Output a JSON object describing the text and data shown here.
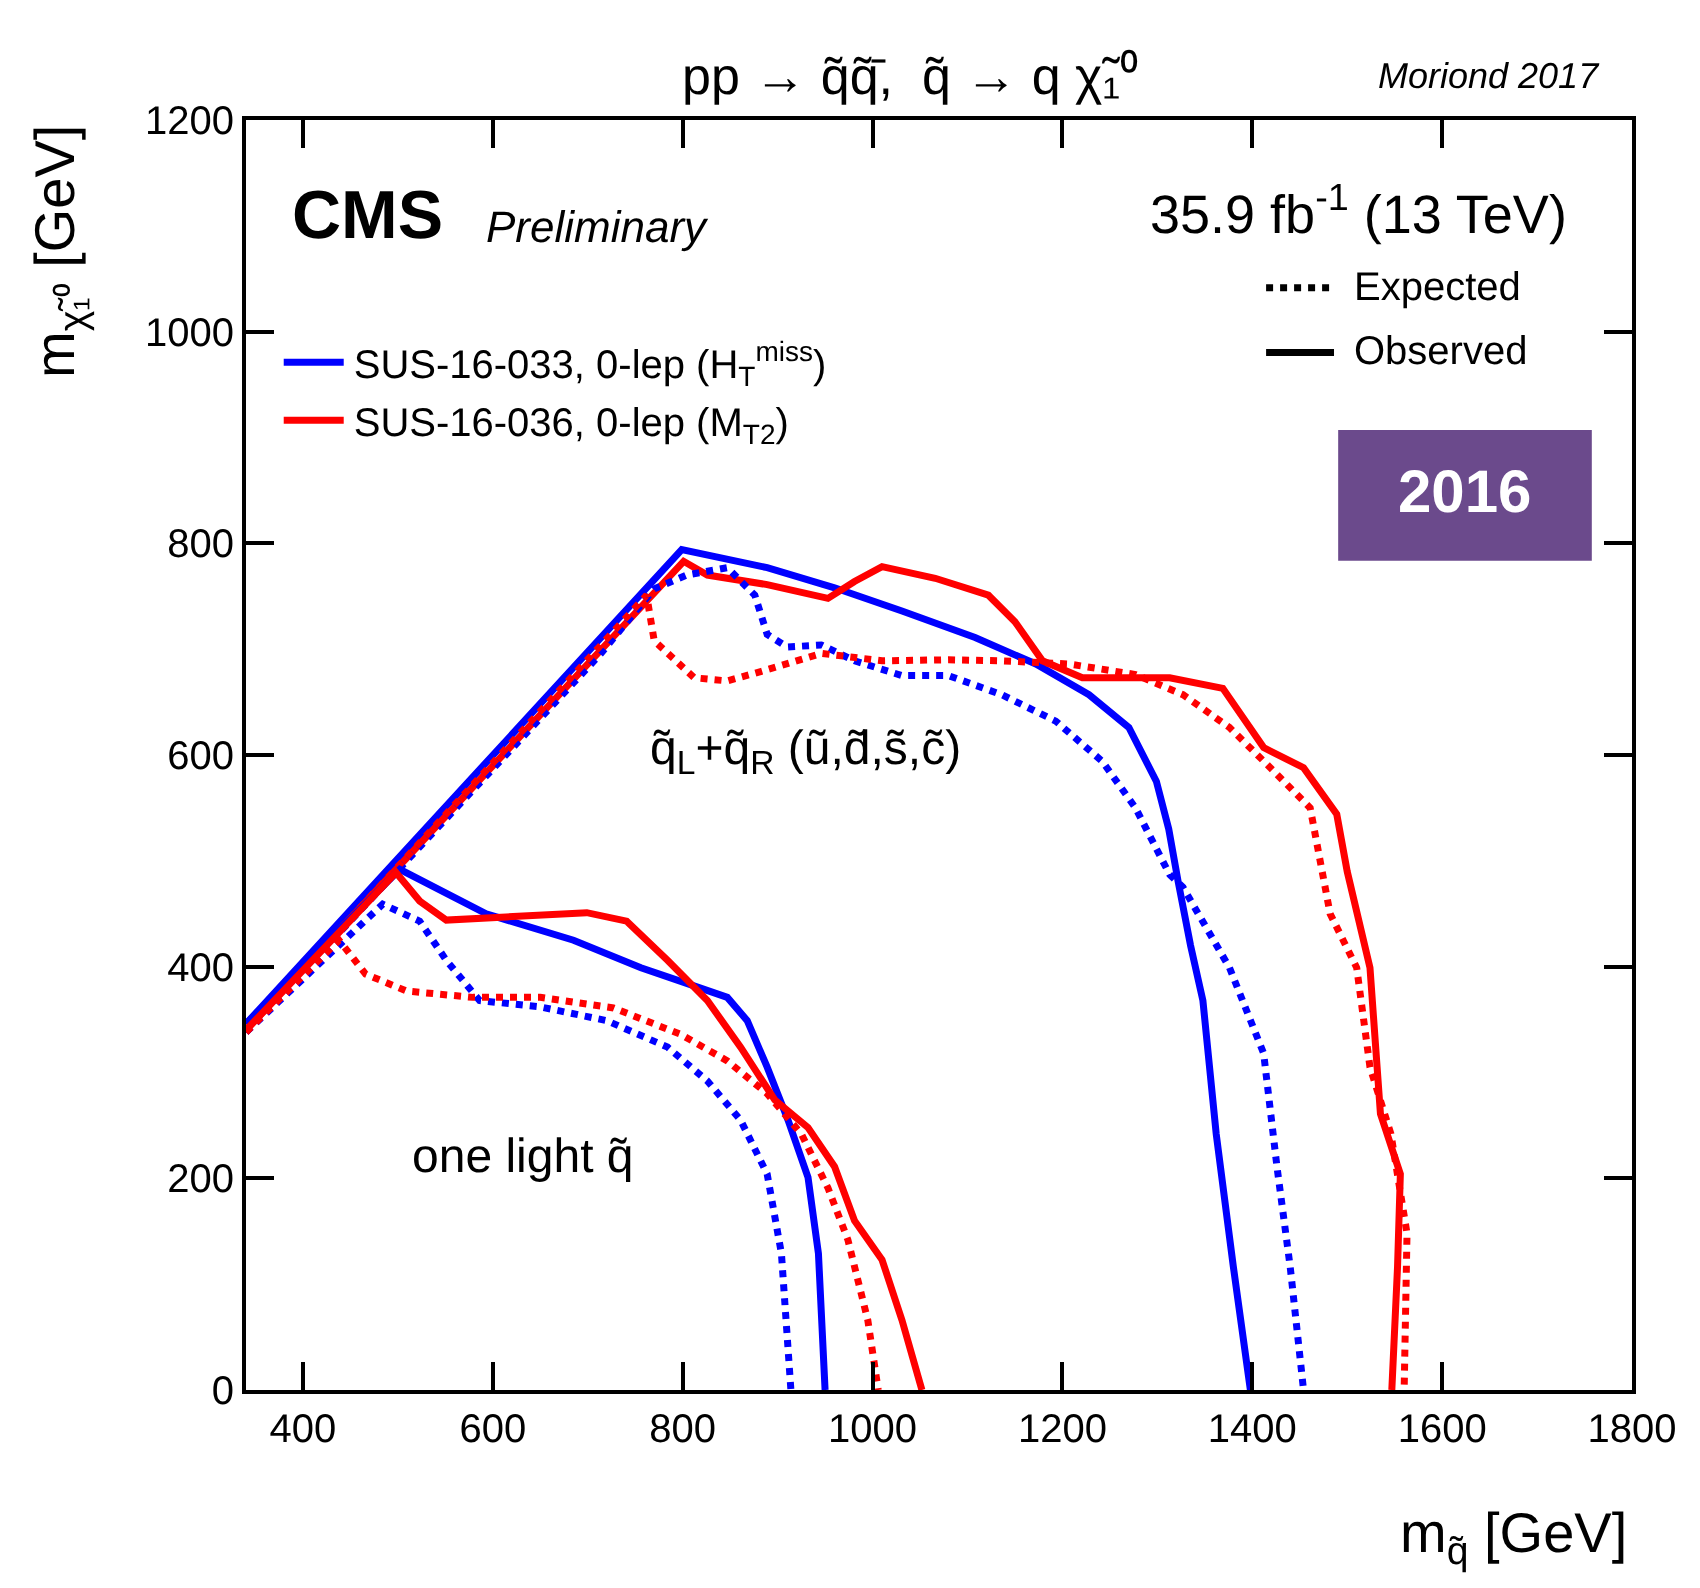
{
  "chart_data": {
    "type": "line",
    "title": "pp → q̃q̃̄,  q̃ → q χ̃₁⁰",
    "xlabel": "m$_{q̃}$ [GeV]",
    "ylabel": "m$_{χ̃₁⁰}$ [GeV]",
    "xlim": [
      340,
      1800
    ],
    "xticks": [
      400,
      600,
      800,
      1000,
      1200,
      1400,
      1600,
      1800
    ],
    "ylim": [
      0,
      1200
    ],
    "yticks": [
      0,
      200,
      400,
      600,
      800,
      1000,
      1200
    ],
    "grid": false,
    "legend": "top left",
    "marker": "none",
    "annotations": [
      "Moriond 2017",
      "CMS",
      "Preliminary",
      "35.9 fb$^{-1}$ (13 TeV)",
      "Expected",
      "Observed",
      "2016",
      "q̃$_{L}$+q̃$_{R}$ (ũ,d̃,s̃,c̃)",
      "one light q̃"
    ],
    "series": [
      {
        "name": "SUS-16-033, 0-lep (H$_{T}$$^{miss}$)",
        "color": "#0000ff",
        "line_style": "solid",
        "x": [
          340,
          799,
          889,
          960,
          1031,
          1108,
          1172,
          1228,
          1270,
          1299,
          1312,
          1322,
          1335,
          1348,
          1362,
          1380,
          1398
        ],
        "values": [
          346,
          794,
          777,
          758,
          736,
          711,
          686,
          657,
          626,
          575,
          530,
          480,
          420,
          368,
          242,
          117,
          0
        ]
      },
      {
        "name": "SUS-16-036, 0-lep (M$_{T2}$)",
        "color": "#ff0000",
        "line_style": "solid",
        "x": [
          340,
          801,
          826,
          889,
          953,
          981,
          1010,
          1066,
          1122,
          1150,
          1179,
          1221,
          1313,
          1369,
          1412,
          1454,
          1489,
          1500,
          1524,
          1535,
          1556,
          1553,
          1547
        ],
        "values": [
          340,
          783,
          770,
          761,
          748,
          764,
          778,
          767,
          751,
          726,
          689,
          673,
          673,
          663,
          607,
          588,
          544,
          490,
          399,
          261,
          204,
          116,
          0
        ]
      },
      {
        "color": "#0000ff",
        "line_style": "dotted",
        "x": [
          340,
          713,
          770,
          804,
          847,
          876,
          889,
          910,
          946,
          981,
          1031,
          1080,
          1136,
          1193,
          1242,
          1277,
          1313,
          1327,
          1376,
          1412,
          1426,
          1440,
          1454
        ],
        "values": [
          338,
          695,
          757,
          770,
          777,
          751,
          714,
          702,
          704,
          689,
          675,
          675,
          657,
          632,
          594,
          550,
          487,
          475,
          399,
          318,
          211,
          116,
          0
        ]
      },
      {
        "color": "#ff0000",
        "line_style": "dotted",
        "x": [
          340,
          762,
          770,
          812,
          847,
          883,
          946,
          1010,
          1080,
          1136,
          1207,
          1277,
          1327,
          1376,
          1419,
          1461,
          1482,
          1510,
          1524,
          1546,
          1563,
          1560
        ],
        "values": [
          338,
          751,
          708,
          673,
          670,
          679,
          696,
          689,
          690,
          689,
          686,
          676,
          657,
          626,
          588,
          550,
          450,
          399,
          305,
          242,
          148,
          0
        ]
      },
      {
        "color": "#0000ff",
        "line_style": "solid",
        "x": [
          340,
          502,
          593,
          685,
          756,
          805,
          847,
          868,
          889,
          911,
          932,
          943,
          950
        ],
        "values": [
          346,
          492,
          450,
          425,
          399,
          384,
          371,
          349,
          305,
          255,
          201,
          129,
          0
        ]
      },
      {
        "color": "#0000ff",
        "line_style": "dotted",
        "x": [
          340,
          484,
          523,
          551,
          586,
          650,
          720,
          784,
          826,
          861,
          889,
          904,
          914
        ],
        "values": [
          338,
          459,
          443,
          406,
          368,
          362,
          349,
          324,
          292,
          255,
          204,
          129,
          0
        ]
      },
      {
        "color": "#ff0000",
        "line_style": "solid",
        "x": [
          340,
          498,
          523,
          551,
          614,
          699,
          741,
          784,
          826,
          861,
          897,
          932,
          960,
          981,
          1010,
          1031,
          1052
        ],
        "values": [
          340,
          489,
          462,
          444,
          447,
          451,
          443,
          406,
          368,
          324,
          274,
          248,
          211,
          160,
          123,
          66,
          0
        ]
      },
      {
        "color": "#ff0000",
        "line_style": "dotted",
        "x": [
          340,
          438,
          466,
          509,
          579,
          650,
          727,
          798,
          847,
          889,
          925,
          953,
          974,
          995,
          1006
        ],
        "values": [
          338,
          425,
          393,
          377,
          371,
          371,
          361,
          336,
          311,
          280,
          242,
          191,
          142,
          66,
          0
        ]
      }
    ]
  }
}
